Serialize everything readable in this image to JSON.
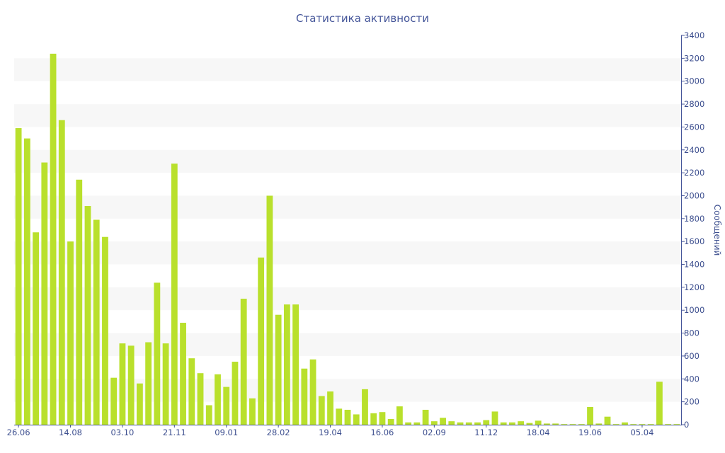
{
  "chart_data": {
    "type": "bar",
    "title": "Статистика активности",
    "ylabel": "Сообщений",
    "xlabel": "",
    "ylim": [
      0,
      3400
    ],
    "y_ticks": [
      0,
      200,
      400,
      600,
      800,
      1000,
      1200,
      1400,
      1600,
      1800,
      2000,
      2200,
      2400,
      2600,
      2800,
      3000,
      3200,
      3400
    ],
    "x_tick_labels": [
      {
        "index": 0,
        "label": "26.06"
      },
      {
        "index": 6,
        "label": "14.08"
      },
      {
        "index": 12,
        "label": "03.10"
      },
      {
        "index": 18,
        "label": "21.11"
      },
      {
        "index": 24,
        "label": "09.01"
      },
      {
        "index": 30,
        "label": "28.02"
      },
      {
        "index": 36,
        "label": "19.04"
      },
      {
        "index": 42,
        "label": "16.06"
      },
      {
        "index": 48,
        "label": "02.09"
      },
      {
        "index": 54,
        "label": "11.12"
      },
      {
        "index": 60,
        "label": "18.04"
      },
      {
        "index": 66,
        "label": "19.06"
      },
      {
        "index": 72,
        "label": "05.04"
      }
    ],
    "values": [
      2590,
      2500,
      1680,
      2290,
      3240,
      2660,
      1600,
      2140,
      1910,
      1790,
      1640,
      410,
      710,
      690,
      360,
      720,
      1240,
      710,
      2280,
      890,
      580,
      450,
      170,
      440,
      330,
      550,
      1100,
      230,
      1460,
      2000,
      960,
      1050,
      1050,
      490,
      570,
      250,
      290,
      140,
      130,
      90,
      310,
      100,
      110,
      50,
      160,
      20,
      20,
      130,
      30,
      60,
      30,
      20,
      20,
      20,
      40,
      115,
      20,
      20,
      30,
      15,
      35,
      10,
      10,
      5,
      5,
      5,
      155,
      10,
      70,
      5,
      20,
      5,
      5,
      5,
      375,
      5,
      5
    ],
    "bar_color": "#b9e02c",
    "band_color": "#f7f7f7",
    "axis_color": "#445599",
    "y_axis_position": "right",
    "grid": "horizontal-bands",
    "legend": "none"
  }
}
